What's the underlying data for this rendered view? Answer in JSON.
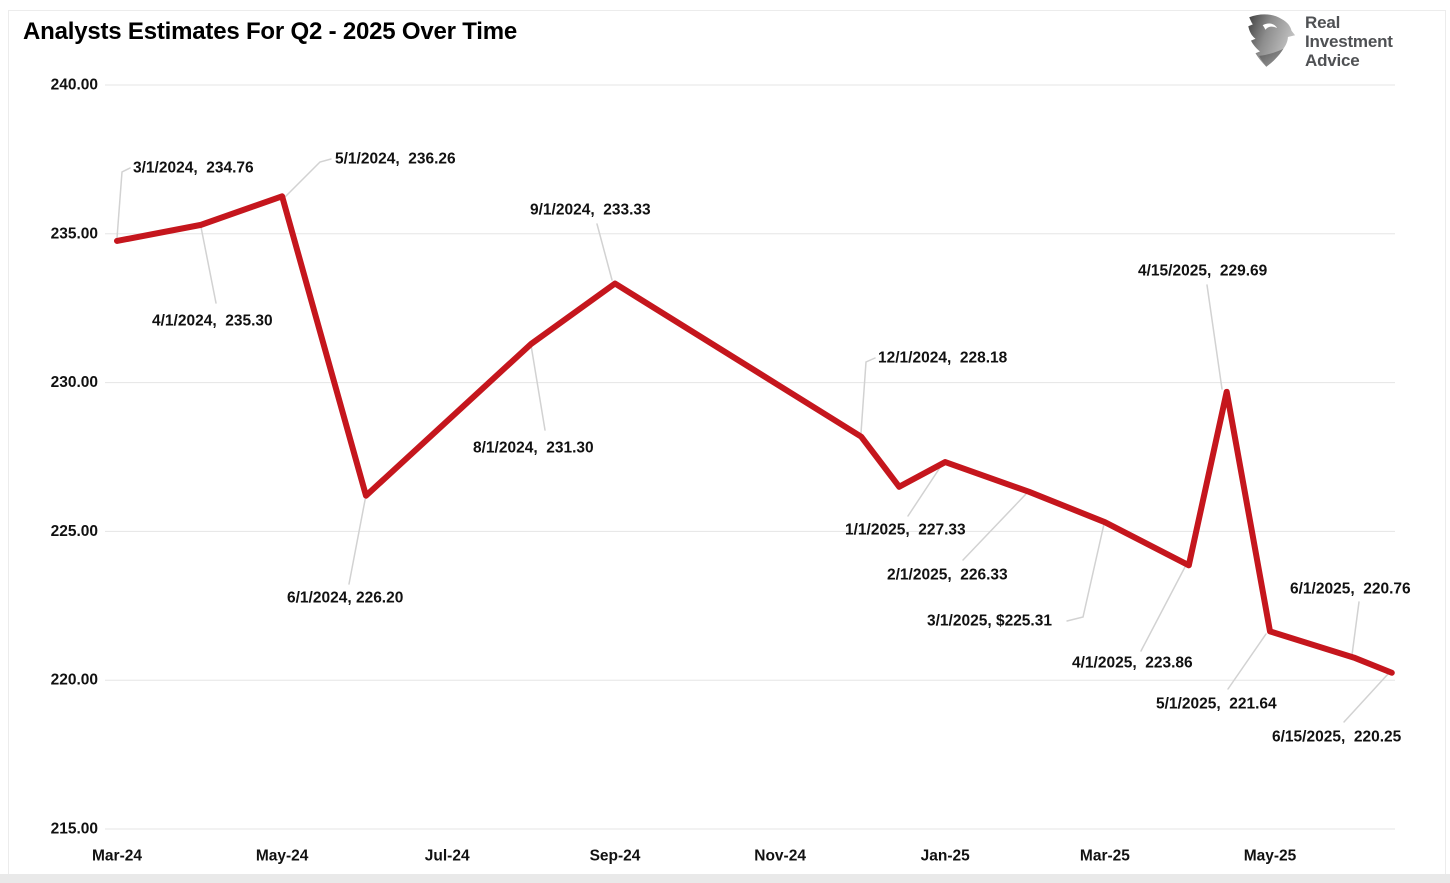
{
  "page": {
    "title": "Analysts Estimates For Q2 - 2025 Over Time"
  },
  "logo": {
    "icon": "eagle-icon",
    "lines": [
      "Real",
      "Investment",
      "Advice"
    ]
  },
  "colors": {
    "series_red": "#c5161d",
    "gridline": "#e5e5e5",
    "leader_line": "#d2d2d2",
    "label_text": "#111111",
    "logo_text": "#4f5154"
  },
  "chart_data": {
    "type": "line",
    "title": "Analysts Estimates For Q2 - 2025 Over Time",
    "xlabel": "",
    "ylabel": "",
    "grid": true,
    "legend": false,
    "ylim": [
      215,
      240
    ],
    "ytick_step": 5,
    "yticks": [
      {
        "value": 240,
        "label": "240.00"
      },
      {
        "value": 235,
        "label": "235.00"
      },
      {
        "value": 230,
        "label": "230.00"
      },
      {
        "value": 225,
        "label": "225.00"
      },
      {
        "value": 220,
        "label": "220.00"
      },
      {
        "value": 215,
        "label": "215.00"
      }
    ],
    "xticks": [
      {
        "date": "3/1/2024",
        "label": "Mar-24"
      },
      {
        "date": "5/1/2024",
        "label": "May-24"
      },
      {
        "date": "7/1/2024",
        "label": "Jul-24"
      },
      {
        "date": "9/1/2024",
        "label": "Sep-24"
      },
      {
        "date": "11/1/2024",
        "label": "Nov-24"
      },
      {
        "date": "1/1/2025",
        "label": "Jan-25"
      },
      {
        "date": "3/1/2025",
        "label": "Mar-25"
      },
      {
        "date": "5/1/2025",
        "label": "May-25"
      }
    ],
    "points": [
      {
        "date": "3/1/2024",
        "value": 234.76,
        "label": "3/1/2024,  234.76"
      },
      {
        "date": "4/1/2024",
        "value": 235.3,
        "label": "4/1/2024,  235.30"
      },
      {
        "date": "5/1/2024",
        "value": 236.26,
        "label": "5/1/2024,  236.26"
      },
      {
        "date": "6/1/2024",
        "value": 226.2,
        "label": "6/1/2024, 226.20"
      },
      {
        "date": "8/1/2024",
        "value": 231.3,
        "label": "8/1/2024,  231.30"
      },
      {
        "date": "9/1/2024",
        "value": 233.33,
        "label": "9/1/2024,  233.33"
      },
      {
        "date": "12/1/2024",
        "value": 228.18,
        "label": "12/1/2024,  228.18"
      },
      {
        "date": "12/15/2024",
        "value": 226.5,
        "label": null,
        "estimated": true
      },
      {
        "date": "1/1/2025",
        "value": 227.33,
        "label": "1/1/2025,  227.33"
      },
      {
        "date": "2/1/2025",
        "value": 226.33,
        "label": "2/1/2025,  226.33"
      },
      {
        "date": "3/1/2025",
        "value": 225.31,
        "label": "3/1/2025, $225.31"
      },
      {
        "date": "4/1/2025",
        "value": 223.86,
        "label": "4/1/2025,  223.86"
      },
      {
        "date": "4/15/2025",
        "value": 229.69,
        "label": "4/15/2025,  229.69"
      },
      {
        "date": "5/1/2025",
        "value": 221.64,
        "label": "5/1/2025,  221.64"
      },
      {
        "date": "6/1/2025",
        "value": 220.76,
        "label": "6/1/2025,  220.76"
      },
      {
        "date": "6/15/2025",
        "value": 220.25,
        "label": "6/15/2025,  220.25"
      }
    ]
  }
}
